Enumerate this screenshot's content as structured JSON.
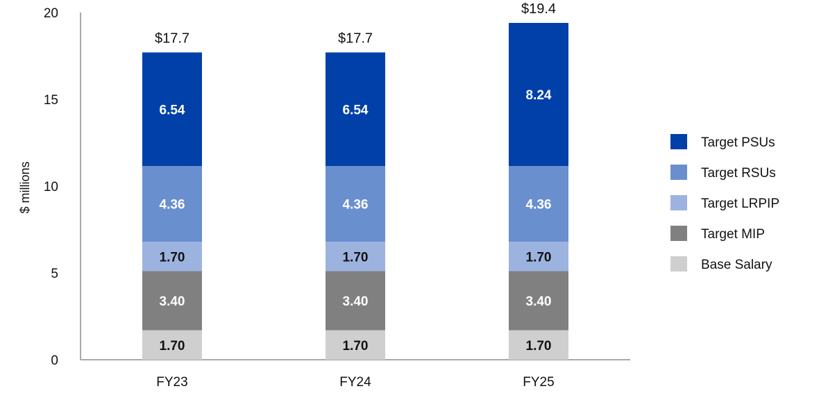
{
  "chart_data": {
    "type": "bar",
    "stacked": true,
    "title": "",
    "xlabel": "",
    "ylabel": "$ millions",
    "ylim": [
      0,
      20
    ],
    "yticks": [
      0,
      5,
      10,
      15,
      20
    ],
    "grid": false,
    "legend_position": "right",
    "categories": [
      "FY23",
      "FY24",
      "FY25"
    ],
    "totals": [
      "$17.7",
      "$17.7",
      "$19.4"
    ],
    "series": [
      {
        "name": "Base Salary",
        "color": "#cfcfcf",
        "label_color": "#111111",
        "values": [
          1.7,
          1.7,
          1.7
        ],
        "labels": [
          "1.70",
          "1.70",
          "1.70"
        ]
      },
      {
        "name": "Target MIP",
        "color": "#808080",
        "label_color": "#ffffff",
        "values": [
          3.4,
          3.4,
          3.4
        ],
        "labels": [
          "3.40",
          "3.40",
          "3.40"
        ]
      },
      {
        "name": "Target LRPIP",
        "color": "#9db3df",
        "label_color": "#111111",
        "values": [
          1.7,
          1.7,
          1.7
        ],
        "labels": [
          "1.70",
          "1.70",
          "1.70"
        ]
      },
      {
        "name": "Target RSUs",
        "color": "#6a8fcf",
        "label_color": "#ffffff",
        "values": [
          4.36,
          4.36,
          4.36
        ],
        "labels": [
          "4.36",
          "4.36",
          "4.36"
        ]
      },
      {
        "name": "Target PSUs",
        "color": "#0040a8",
        "label_color": "#ffffff",
        "values": [
          6.54,
          6.54,
          8.24
        ],
        "labels": [
          "6.54",
          "6.54",
          "8.24"
        ]
      }
    ],
    "legend_order": [
      "Target PSUs",
      "Target RSUs",
      "Target LRPIP",
      "Target MIP",
      "Base Salary"
    ]
  }
}
